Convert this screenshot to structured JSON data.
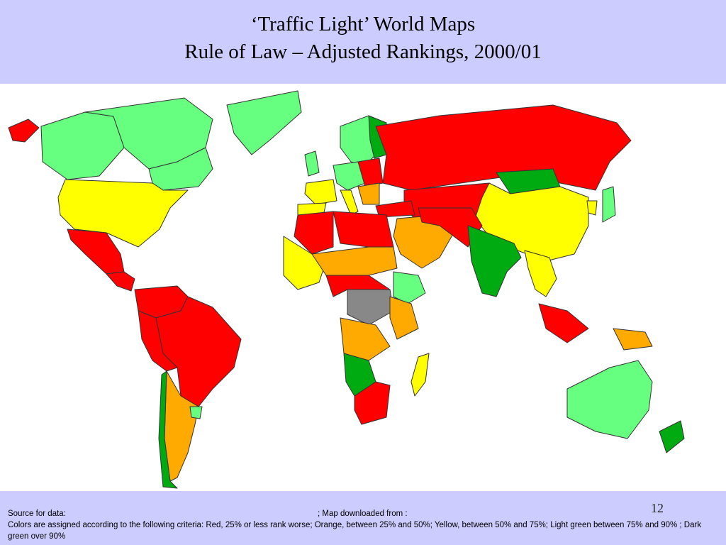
{
  "slide": {
    "title_line1": "‘Traffic Light’ World Maps",
    "title_line2": "Rule of Law – Adjusted Rankings, 2000/01",
    "page_number": "12"
  },
  "footer": {
    "source_label": "Source for data:",
    "map_download_label": "; Map downloaded from :",
    "criteria_text": "Colors are assigned according to the following criteria:  Red, 25% or less rank worse; Orange, between 25% and 50%; Yellow, between 50% and 75%; Light green between 75% and 90% ; Dark green over 90%"
  },
  "legend_colors": {
    "red": "#ff0000",
    "orange": "#ffaa00",
    "yellow": "#ffff00",
    "light_green": "#66ff80",
    "dark_green": "#00aa11",
    "no_data": "#888888"
  }
}
